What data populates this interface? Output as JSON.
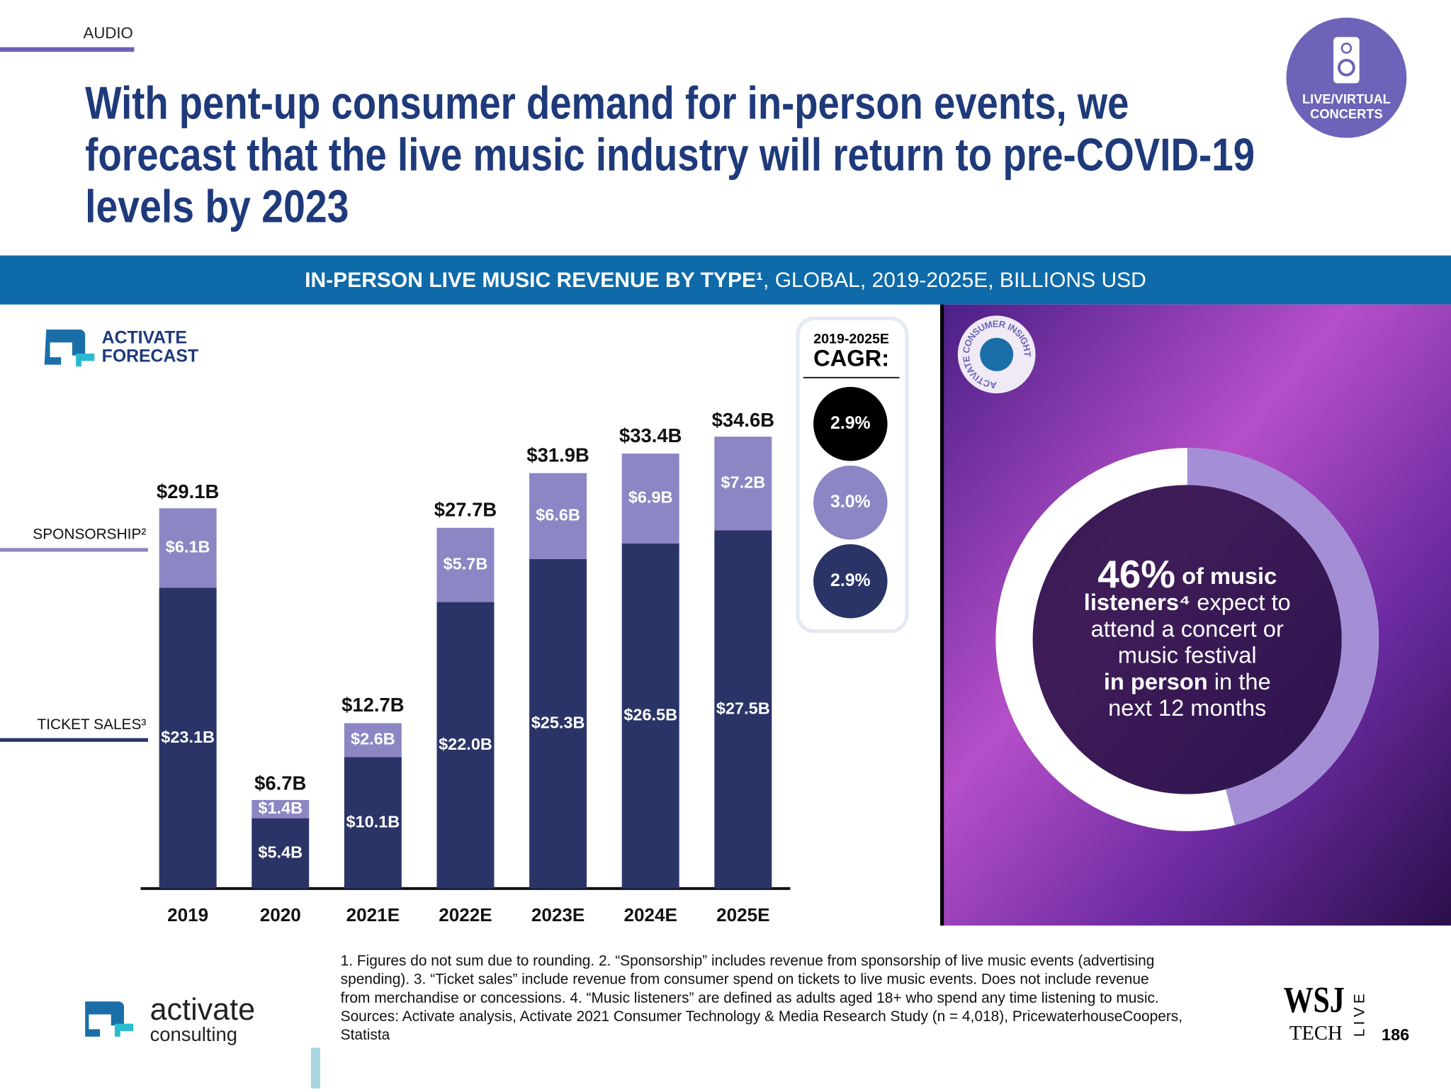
{
  "header": {
    "section": "AUDIO",
    "title_lines": [
      "With pent-up consumer demand for in-person events, we",
      "forecast that the live music industry will return to pre-COVID-19",
      "levels by 2023"
    ],
    "badge_lines": [
      "LIVE/VIRTUAL",
      "CONCERTS"
    ]
  },
  "band": {
    "bold": "IN-PERSON LIVE MUSIC REVENUE BY TYPE¹",
    "rest": ", GLOBAL, 2019-2025E, BILLIONS USD"
  },
  "logo_lines": [
    "ACTIVATE",
    "FORECAST"
  ],
  "chart_data": {
    "type": "stacked_bar",
    "categories": [
      "2019",
      "2020",
      "2021E",
      "2022E",
      "2023E",
      "2024E",
      "2025E"
    ],
    "series": [
      {
        "name": "TICKET SALES³",
        "color": "#2b3467",
        "values": [
          23.1,
          5.4,
          10.1,
          22.0,
          25.3,
          26.5,
          27.5
        ],
        "value_labels": [
          "$23.1B",
          "$5.4B",
          "$10.1B",
          "$22.0B",
          "$25.3B",
          "$26.5B",
          "$27.5B"
        ]
      },
      {
        "name": "SPONSORSHIP²",
        "color": "#8c86c4",
        "values": [
          6.1,
          1.4,
          2.6,
          5.7,
          6.6,
          6.9,
          7.2
        ],
        "value_labels": [
          "$6.1B",
          "$1.4B",
          "$2.6B",
          "$5.7B",
          "$6.6B",
          "$6.9B",
          "$7.2B"
        ]
      }
    ],
    "totals": {
      "values": [
        29.1,
        6.7,
        12.7,
        27.7,
        31.9,
        33.4,
        34.6
      ],
      "value_labels": [
        "$29.1B",
        "$6.7B",
        "$12.7B",
        "$27.7B",
        "$31.9B",
        "$33.4B",
        "$34.6B"
      ]
    }
  },
  "cagr": {
    "period": "2019-2025E",
    "label": "CAGR:",
    "colors": [
      "#000000",
      "#8c86c4",
      "#2b3467"
    ],
    "values": [
      2.9,
      3.0,
      2.9
    ],
    "value_labels": [
      "2.9%",
      "3.0%",
      "2.9%"
    ]
  },
  "insight": {
    "badge": "ACTIVATE CONSUMER INSIGHT",
    "value": 46,
    "value_label": "46%",
    "lines": [
      [
        " of music"
      ],
      [
        "listeners⁴",
        " expect to"
      ],
      [
        "attend a concert or"
      ],
      [
        "music festival"
      ],
      [
        "in person",
        " in the"
      ],
      [
        "next 12 months"
      ]
    ]
  },
  "footnotes": [
    "1. Figures do not sum due to rounding.  2. “Sponsorship” includes revenue from sponsorship of live music events (advertising",
    "spending).  3. “Ticket sales” include revenue from consumer spend on tickets to live music events. Does not include revenue",
    "from merchandise or concessions.  4. “Music listeners” are defined as adults aged 18+ who spend any time listening to music.",
    "Sources: Activate analysis, Activate 2021 Consumer Technology & Media Research Study (n = 4,018), PricewaterhouseCoopers,",
    "Statista"
  ],
  "footer": {
    "brand": "activate",
    "brand_sub": "consulting",
    "wsj": "WSJ",
    "tech": "TECH",
    "live": "LIVE",
    "page": "186"
  }
}
